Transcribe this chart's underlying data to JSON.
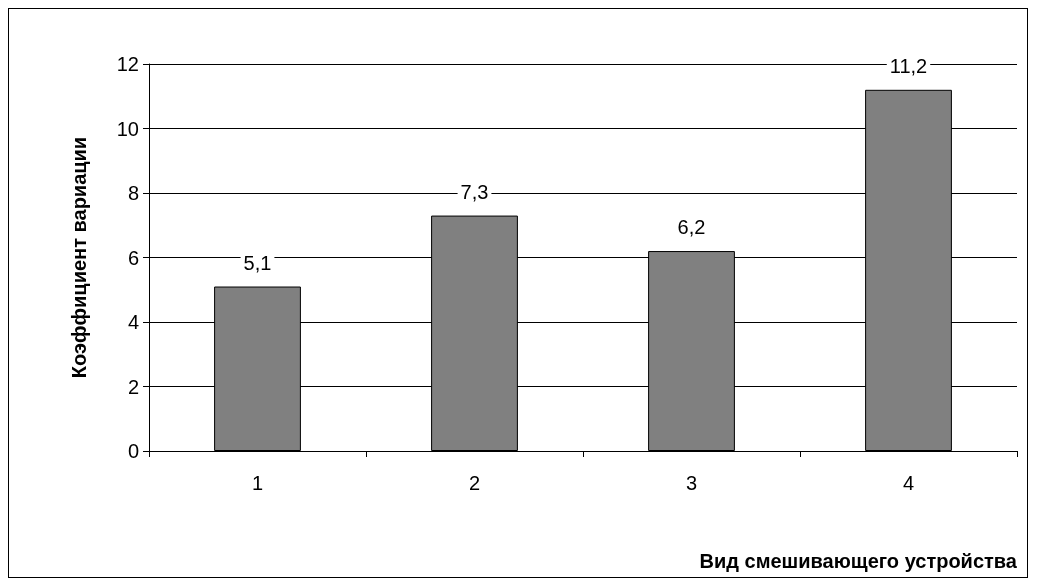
{
  "chart_data": {
    "type": "bar",
    "xlabel": "Вид смешивающего устройства",
    "ylabel": "Коэффициент вариации",
    "categories": [
      "1",
      "2",
      "3",
      "4"
    ],
    "values": [
      5.1,
      7.3,
      6.2,
      11.2
    ],
    "value_labels": [
      "5,1",
      "7,3",
      "6,2",
      "11,2"
    ],
    "color": "#808080",
    "ylim": [
      0,
      12
    ],
    "yticks": [
      0,
      2,
      4,
      6,
      8,
      10,
      12
    ],
    "grid": "y"
  }
}
